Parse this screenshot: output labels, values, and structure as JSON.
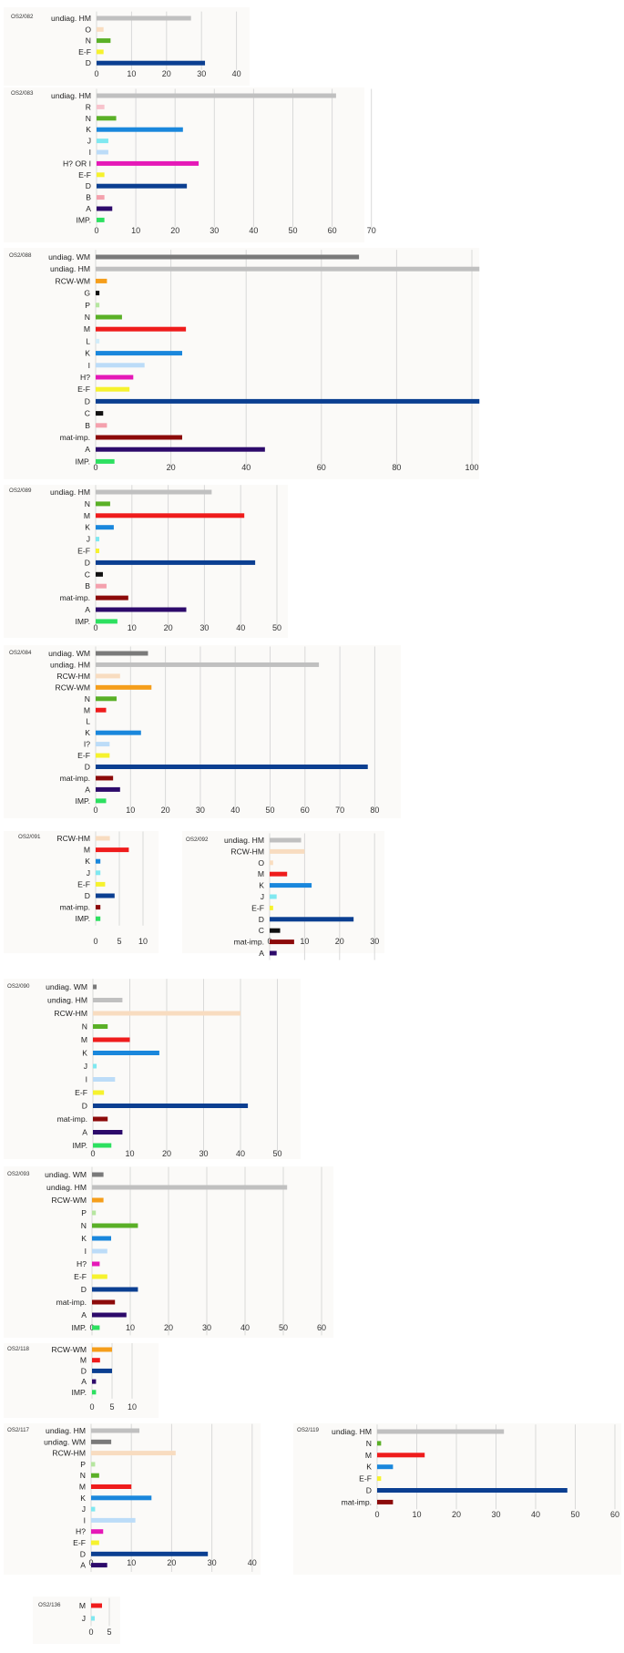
{
  "palette": {
    "undiag. WM": "#7a7a7a",
    "undiag. HM": "#c0c0c0",
    "RCW-HM": "#f8dcc0",
    "RCW-WM": "#f59e1b",
    "G": "#111111",
    "P": "#b6e6a0",
    "O": "#f9ddc0",
    "R": "#f7c3cc",
    "N": "#5ab027",
    "M": "#ef1c1c",
    "L": "#d2ecf9",
    "K": "#1a87dc",
    "J": "#80e8f0",
    "I": "#bcdcf8",
    "I?": "#bcdcf8",
    "H?": "#e519b7",
    "H? OR I": "#e519b7",
    "E-F": "#f6f22e",
    "D": "#0b3f91",
    "C": "#111111",
    "B": "#f4a1ad",
    "mat-imp.": "#8c0a0a",
    "A": "#2d0a6b",
    "IMP.": "#2de060"
  },
  "chart_data": [
    {
      "type": "bar",
      "title": "OS2/082",
      "categories": [
        "undiag. HM",
        "O",
        "N",
        "E-F",
        "D"
      ],
      "values": [
        27,
        2,
        4,
        2,
        31
      ],
      "xlim": [
        0,
        40
      ],
      "xticks": [
        0,
        10,
        20,
        30,
        40
      ]
    },
    {
      "type": "bar",
      "title": "OS2/083",
      "categories": [
        "undiag. HM",
        "R",
        "N",
        "K",
        "J",
        "I",
        "H? OR I",
        "E-F",
        "D",
        "B",
        "A",
        "IMP."
      ],
      "values": [
        61,
        2,
        5,
        22,
        3,
        3,
        26,
        2,
        23,
        2,
        4,
        2
      ],
      "xlim": [
        0,
        70
      ],
      "xticks": [
        0,
        10,
        20,
        30,
        40,
        50,
        60,
        70
      ]
    },
    {
      "type": "bar",
      "title": "OS2/088",
      "categories": [
        "undiag. WM",
        "undiag. HM",
        "RCW-WM",
        "G",
        "P",
        "N",
        "M",
        "L",
        "K",
        "I",
        "H?",
        "E-F",
        "D",
        "C",
        "B",
        "mat-imp.",
        "A",
        "IMP."
      ],
      "values": [
        70,
        102,
        3,
        1,
        1,
        7,
        24,
        1,
        23,
        13,
        10,
        9,
        102,
        2,
        3,
        23,
        45,
        5
      ],
      "xlim": [
        0,
        100
      ],
      "xticks": [
        0,
        20,
        40,
        60,
        80,
        100
      ]
    },
    {
      "type": "bar",
      "title": "OS2/089",
      "categories": [
        "undiag. HM",
        "N",
        "M",
        "K",
        "J",
        "E-F",
        "D",
        "C",
        "B",
        "mat-imp.",
        "A",
        "IMP."
      ],
      "values": [
        32,
        4,
        41,
        5,
        1,
        1,
        44,
        2,
        3,
        9,
        25,
        6
      ],
      "xlim": [
        0,
        50
      ],
      "xticks": [
        0,
        10,
        20,
        30,
        40,
        50
      ]
    },
    {
      "type": "bar",
      "title": "OS2/084",
      "categories": [
        "undiag. WM",
        "undiag. HM",
        "RCW-HM",
        "RCW-WM",
        "N",
        "M",
        "L",
        "K",
        "I?",
        "E-F",
        "D",
        "mat-imp.",
        "A",
        "IMP."
      ],
      "values": [
        15,
        64,
        7,
        16,
        6,
        3,
        0,
        13,
        4,
        4,
        78,
        5,
        7,
        3
      ],
      "xlim": [
        0,
        80
      ],
      "xticks": [
        0,
        10,
        20,
        30,
        40,
        50,
        60,
        70,
        80
      ]
    },
    {
      "type": "bar",
      "title": "OS2/091",
      "categories": [
        "RCW-HM",
        "M",
        "K",
        "J",
        "E-F",
        "D",
        "mat-imp.",
        "IMP."
      ],
      "values": [
        3,
        7,
        1,
        1,
        2,
        4,
        1,
        1
      ],
      "xlim": [
        0,
        10
      ],
      "xticks": [
        0,
        5,
        10
      ]
    },
    {
      "type": "bar",
      "title": "OS2/092",
      "categories": [
        "undiag. HM",
        "RCW-HM",
        "O",
        "M",
        "K",
        "J",
        "E-F",
        "D",
        "C",
        "mat-imp.",
        "A"
      ],
      "values": [
        9,
        10,
        1,
        5,
        12,
        2,
        1,
        24,
        3,
        7,
        2
      ],
      "xlim": [
        0,
        30
      ],
      "xticks": [
        0,
        10,
        20,
        30
      ]
    },
    {
      "type": "bar",
      "title": "OS2/090",
      "categories": [
        "undiag. WM",
        "undiag. HM",
        "RCW-HM",
        "N",
        "M",
        "K",
        "J",
        "I",
        "E-F",
        "D",
        "mat-imp.",
        "A",
        "IMP."
      ],
      "values": [
        1,
        8,
        40,
        4,
        10,
        18,
        1,
        6,
        3,
        42,
        4,
        8,
        5
      ],
      "xlim": [
        0,
        50
      ],
      "xticks": [
        0,
        10,
        20,
        30,
        40,
        50
      ]
    },
    {
      "type": "bar",
      "title": "OS2/093",
      "categories": [
        "undiag. WM",
        "undiag. HM",
        "RCW-WM",
        "P",
        "N",
        "K",
        "I",
        "H?",
        "E-F",
        "D",
        "mat-imp.",
        "A",
        "IMP."
      ],
      "values": [
        3,
        51,
        3,
        1,
        12,
        5,
        4,
        2,
        4,
        12,
        6,
        9,
        2
      ],
      "xlim": [
        0,
        60
      ],
      "xticks": [
        0,
        10,
        20,
        30,
        40,
        50,
        60
      ]
    },
    {
      "type": "bar",
      "title": "OS2/118",
      "categories": [
        "RCW-WM",
        "M",
        "D",
        "A",
        "IMP."
      ],
      "values": [
        5,
        2,
        5,
        1,
        1
      ],
      "xlim": [
        0,
        10
      ],
      "xticks": [
        0,
        5,
        10
      ]
    },
    {
      "type": "bar",
      "title": "OS2/117",
      "categories": [
        "undiag. HM",
        "undiag. WM",
        "RCW-HM",
        "P",
        "N",
        "M",
        "K",
        "J",
        "I",
        "H?",
        "E-F",
        "D",
        "A"
      ],
      "values": [
        12,
        5,
        21,
        1,
        2,
        10,
        15,
        1,
        11,
        3,
        2,
        29,
        4
      ],
      "xlim": [
        0,
        40
      ],
      "xticks": [
        0,
        10,
        20,
        30,
        40
      ]
    },
    {
      "type": "bar",
      "title": "OS2/119",
      "categories": [
        "undiag. HM",
        "N",
        "M",
        "K",
        "E-F",
        "D",
        "mat-imp."
      ],
      "values": [
        32,
        1,
        12,
        4,
        1,
        48,
        4
      ],
      "xlim": [
        0,
        60
      ],
      "xticks": [
        0,
        10,
        20,
        30,
        40,
        50,
        60
      ]
    },
    {
      "type": "bar",
      "title": "OS2/136",
      "categories": [
        "M",
        "J"
      ],
      "values": [
        3,
        1
      ],
      "xlim": [
        0,
        5
      ],
      "xticks": [
        0,
        5
      ]
    }
  ]
}
